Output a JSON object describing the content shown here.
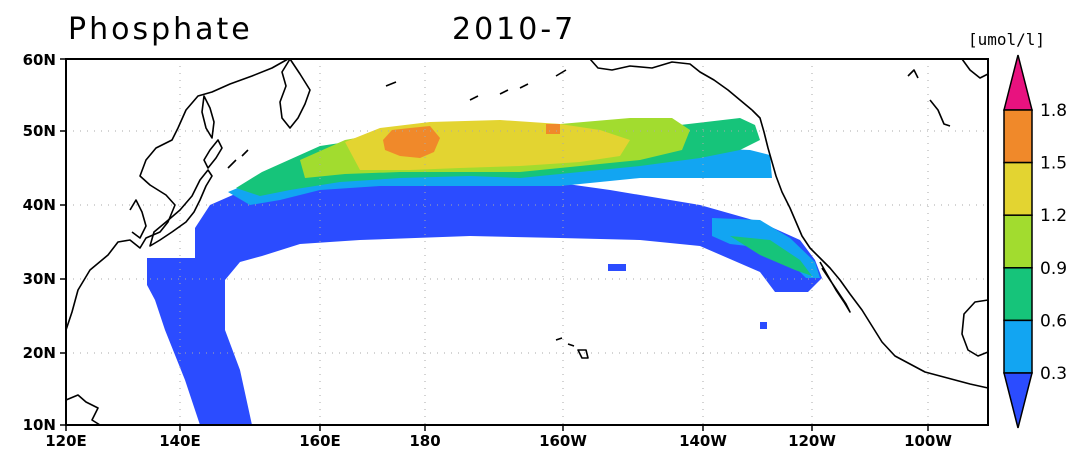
{
  "title": "Phosphate",
  "date": "2010-7",
  "unit": "[umol/l]",
  "lat_labels": [
    "10N",
    "20N",
    "30N",
    "40N",
    "50N",
    "60N"
  ],
  "lon_labels": [
    "120E",
    "140E",
    "160E",
    "180",
    "160W",
    "140W",
    "120W",
    "100W"
  ],
  "colorbar": {
    "ticks": [
      "0.3",
      "0.6",
      "0.9",
      "1.2",
      "1.5",
      "1.8"
    ],
    "colors": [
      "#2b4cff",
      "#12a5f2",
      "#16c47a",
      "#a2dc2f",
      "#e3d431",
      "#f0892a",
      "#e8127f"
    ]
  },
  "colors": {
    "land_outline": "#000000",
    "grid": "#aaaaaa"
  }
}
